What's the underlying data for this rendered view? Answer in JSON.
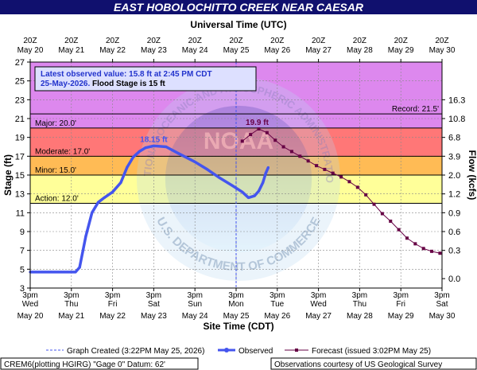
{
  "chart_data": {
    "type": "line",
    "title": "EAST HOBOLOCHITTO CREEK NEAR CAESAR",
    "top_axis_label": "Universal Time (UTC)",
    "bottom_axis_label": "Site Time (CDT)",
    "ylabel": "Stage (ft)",
    "y2label": "Flow (kcfs)",
    "ylim": [
      3,
      27
    ],
    "y_ticks": [
      "3",
      "5",
      "7",
      "9",
      "11",
      "13",
      "15",
      "17",
      "19",
      "21",
      "23",
      "25",
      "27"
    ],
    "y2_ticks": [
      {
        "stage": 4.0,
        "label": "0.0"
      },
      {
        "stage": 7.0,
        "label": "0.3"
      },
      {
        "stage": 9.0,
        "label": "0.6"
      },
      {
        "stage": 11.0,
        "label": "0.9"
      },
      {
        "stage": 13.0,
        "label": "1.2"
      },
      {
        "stage": 15.0,
        "label": "2.0"
      },
      {
        "stage": 17.0,
        "label": "3.9"
      },
      {
        "stage": 19.0,
        "label": "6.8"
      },
      {
        "stage": 21.0,
        "label": "10.8"
      },
      {
        "stage": 23.0,
        "label": "16.3"
      }
    ],
    "x_days": 10,
    "top_ticks": [
      {
        "l1": "20Z",
        "l2": "May 20"
      },
      {
        "l1": "20Z",
        "l2": "May 21"
      },
      {
        "l1": "20Z",
        "l2": "May 22"
      },
      {
        "l1": "20Z",
        "l2": "May 23"
      },
      {
        "l1": "20Z",
        "l2": "May 24"
      },
      {
        "l1": "20Z",
        "l2": "May 25"
      },
      {
        "l1": "20Z",
        "l2": "May 26"
      },
      {
        "l1": "20Z",
        "l2": "May 27"
      },
      {
        "l1": "20Z",
        "l2": "May 28"
      },
      {
        "l1": "20Z",
        "l2": "May 29"
      },
      {
        "l1": "20Z",
        "l2": "May 30"
      }
    ],
    "bottom_ticks": [
      {
        "l1": "3pm",
        "l2": "Wed",
        "l3": "May 20"
      },
      {
        "l1": "3pm",
        "l2": "Thu",
        "l3": "May 21"
      },
      {
        "l1": "3pm",
        "l2": "Fri",
        "l3": "May 22"
      },
      {
        "l1": "3pm",
        "l2": "Sat",
        "l3": "May 23"
      },
      {
        "l1": "3pm",
        "l2": "Sun",
        "l3": "May 24"
      },
      {
        "l1": "3pm",
        "l2": "Mon",
        "l3": "May 25"
      },
      {
        "l1": "3pm",
        "l2": "Tue",
        "l3": "May 26"
      },
      {
        "l1": "3pm",
        "l2": "Wed",
        "l3": "May 27"
      },
      {
        "l1": "3pm",
        "l2": "Thu",
        "l3": "May 28"
      },
      {
        "l1": "3pm",
        "l2": "Fri",
        "l3": "May 29"
      },
      {
        "l1": "3pm",
        "l2": "Sat",
        "l3": "May 30"
      }
    ],
    "bands": [
      {
        "name": "record",
        "from": 21.5,
        "to": 27,
        "color": "#dd88ee"
      },
      {
        "name": "major",
        "from": 20,
        "to": 21.5,
        "color": "#dd88ee"
      },
      {
        "name": "moderate",
        "from": 17,
        "to": 20,
        "color": "#ff7777"
      },
      {
        "name": "minor",
        "from": 15,
        "to": 17,
        "color": "#ffbb55"
      },
      {
        "name": "action",
        "from": 12,
        "to": 15,
        "color": "#ffff99"
      },
      {
        "name": "normal",
        "from": 3,
        "to": 12,
        "color": "#ffffff"
      }
    ],
    "stage_lines": [
      {
        "label": "Major: 20.0'",
        "value": 20,
        "side": "left"
      },
      {
        "label": "Moderate: 17.0'",
        "value": 17,
        "side": "left"
      },
      {
        "label": "Minor: 15.0'",
        "value": 15,
        "side": "left"
      },
      {
        "label": "Action: 12.0'",
        "value": 12,
        "side": "left"
      },
      {
        "label": "Record: 21.5'",
        "value": 21.5,
        "side": "right"
      }
    ],
    "observed": {
      "name": "Observed",
      "color": "#4455ee",
      "points": [
        [
          0,
          4.7
        ],
        [
          0.5,
          4.7
        ],
        [
          1.1,
          4.7
        ],
        [
          1.2,
          5.2
        ],
        [
          1.35,
          8.5
        ],
        [
          1.5,
          11.0
        ],
        [
          1.65,
          12.1
        ],
        [
          1.8,
          12.6
        ],
        [
          2.0,
          13.2
        ],
        [
          2.2,
          14.2
        ],
        [
          2.35,
          15.8
        ],
        [
          2.5,
          16.9
        ],
        [
          2.65,
          17.5
        ],
        [
          2.8,
          17.9
        ],
        [
          3.0,
          18.1
        ],
        [
          3.3,
          18.0
        ],
        [
          3.6,
          17.3
        ],
        [
          4.0,
          16.4
        ],
        [
          4.3,
          15.6
        ],
        [
          4.6,
          14.7
        ],
        [
          4.9,
          13.9
        ],
        [
          5.15,
          13.2
        ],
        [
          5.3,
          12.6
        ],
        [
          5.45,
          12.8
        ],
        [
          5.55,
          13.3
        ],
        [
          5.65,
          14.2
        ],
        [
          5.72,
          15.2
        ],
        [
          5.78,
          15.8
        ]
      ],
      "peak_label": "18.15 ft",
      "peak_at": [
        3.0,
        18.15
      ]
    },
    "forecast": {
      "name": "Forecast (issued 3:02PM May 25)",
      "color": "#660044",
      "points": [
        [
          5.15,
          18.6
        ],
        [
          5.35,
          19.3
        ],
        [
          5.55,
          19.9
        ],
        [
          5.75,
          19.5
        ],
        [
          5.95,
          18.7
        ],
        [
          6.15,
          18.0
        ],
        [
          6.35,
          17.5
        ],
        [
          6.55,
          17.0
        ],
        [
          6.75,
          16.5
        ],
        [
          6.95,
          16.0
        ],
        [
          7.15,
          15.6
        ],
        [
          7.35,
          15.2
        ],
        [
          7.55,
          14.8
        ],
        [
          7.75,
          14.3
        ],
        [
          7.95,
          13.7
        ],
        [
          8.15,
          12.9
        ],
        [
          8.35,
          11.9
        ],
        [
          8.55,
          10.9
        ],
        [
          8.75,
          10.1
        ],
        [
          8.95,
          9.2
        ],
        [
          9.15,
          8.3
        ],
        [
          9.35,
          7.7
        ],
        [
          9.55,
          7.2
        ],
        [
          9.75,
          6.9
        ],
        [
          9.95,
          6.7
        ]
      ],
      "peak_label": "19.9 ft",
      "peak_at": [
        5.55,
        19.9
      ]
    },
    "now_day": 5.0,
    "info_box": {
      "line1": "Latest observed value: 15.8 ft at 2:45 PM CDT",
      "line2a": "25-May-2026.",
      "line2b": " Flood Stage is 15 ft"
    }
  },
  "legend": {
    "graph_created": "Graph Created (3:22PM May 25, 2026)",
    "observed": "Observed",
    "forecast": "Forecast (issued 3:02PM May 25)"
  },
  "footer": {
    "left": "CREM6(plotting HGIRG) \"Gage 0\" Datum: 62'",
    "right": "Observations courtesy of US Geological Survey"
  },
  "watermark": {
    "text": "NATIONAL OCEANIC AND ATMOSPHERIC ADMINISTRATION",
    "center": "NOAA",
    "bottom": "U.S. DEPARTMENT OF COMMERCE"
  }
}
